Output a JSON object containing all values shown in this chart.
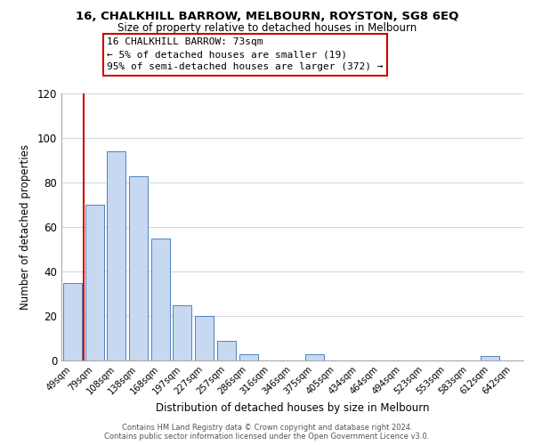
{
  "title": "16, CHALKHILL BARROW, MELBOURN, ROYSTON, SG8 6EQ",
  "subtitle": "Size of property relative to detached houses in Melbourn",
  "xlabel": "Distribution of detached houses by size in Melbourn",
  "ylabel": "Number of detached properties",
  "bar_labels": [
    "49sqm",
    "79sqm",
    "108sqm",
    "138sqm",
    "168sqm",
    "197sqm",
    "227sqm",
    "257sqm",
    "286sqm",
    "316sqm",
    "346sqm",
    "375sqm",
    "405sqm",
    "434sqm",
    "464sqm",
    "494sqm",
    "523sqm",
    "553sqm",
    "583sqm",
    "612sqm",
    "642sqm"
  ],
  "bar_values": [
    35,
    70,
    94,
    83,
    55,
    25,
    20,
    9,
    3,
    0,
    0,
    3,
    0,
    0,
    0,
    0,
    0,
    0,
    0,
    2,
    0
  ],
  "bar_color": "#c6d9f0",
  "bar_edge_color": "#4f81bd",
  "vline_color": "#cc0000",
  "ylim": [
    0,
    120
  ],
  "yticks": [
    0,
    20,
    40,
    60,
    80,
    100,
    120
  ],
  "annotation_title": "16 CHALKHILL BARROW: 73sqm",
  "annotation_line1": "← 5% of detached houses are smaller (19)",
  "annotation_line2": "95% of semi-detached houses are larger (372) →",
  "annotation_box_color": "#ffffff",
  "annotation_box_edge": "#cc0000",
  "footer_line1": "Contains HM Land Registry data © Crown copyright and database right 2024.",
  "footer_line2": "Contains public sector information licensed under the Open Government Licence v3.0.",
  "background_color": "#ffffff",
  "grid_color": "#d0d8e8"
}
